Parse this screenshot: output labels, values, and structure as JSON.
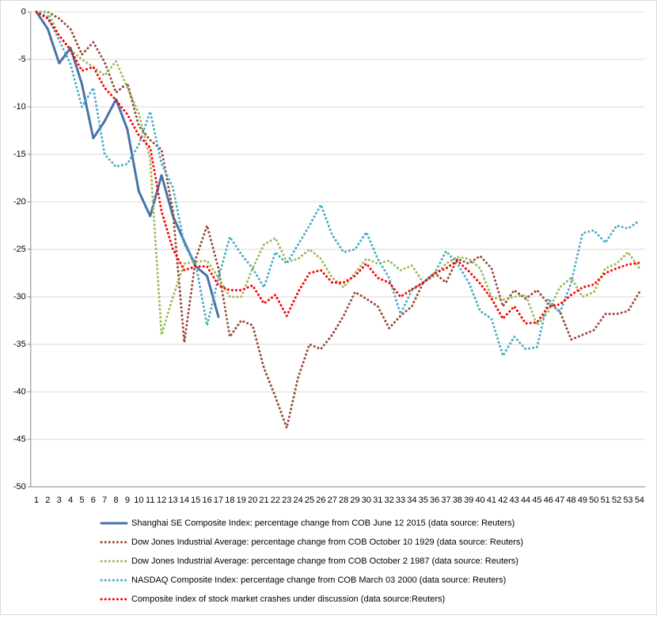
{
  "chart_data": {
    "type": "line",
    "categories": [
      1,
      2,
      3,
      4,
      5,
      6,
      7,
      8,
      9,
      10,
      11,
      12,
      13,
      14,
      15,
      16,
      17,
      18,
      19,
      20,
      21,
      22,
      23,
      24,
      25,
      26,
      27,
      28,
      29,
      30,
      31,
      32,
      33,
      34,
      35,
      36,
      37,
      38,
      39,
      40,
      41,
      42,
      43,
      44,
      45,
      46,
      47,
      48,
      49,
      50,
      51,
      52,
      53,
      54
    ],
    "ylim": [
      -50,
      0
    ],
    "yticks": [
      0,
      -5,
      -10,
      -15,
      -20,
      -25,
      -30,
      -35,
      -40,
      -45,
      -50
    ],
    "grid": true,
    "legend": "bottom",
    "series": [
      {
        "name": "Shanghai SE Composite Index: percentage change from COB June 12 2015 (data source: Reuters)",
        "color": "#4a72a8",
        "line_style": "solid",
        "values": [
          0,
          -1.8,
          -5.4,
          -3.8,
          -7.6,
          -13.3,
          -11.5,
          -9.2,
          -12.4,
          -18.9,
          -21.5,
          -17.2,
          -21.5,
          -24.2,
          -26.8,
          -27.8,
          -32.1,
          null,
          null,
          null,
          null,
          null,
          null,
          null,
          null,
          null,
          null,
          null,
          null,
          null,
          null,
          null,
          null,
          null,
          null,
          null,
          null,
          null,
          null,
          null,
          null,
          null,
          null,
          null,
          null,
          null,
          null,
          null,
          null,
          null,
          null,
          null,
          null,
          null
        ]
      },
      {
        "name": "Dow Jones Industrial Average: percentage change from COB October 10 1929 (data source: Reuters)",
        "color": "#9b4a3a",
        "line_style": "dotted",
        "values": [
          0,
          0,
          -0.7,
          -1.8,
          -4.5,
          -3.2,
          -5.3,
          -8.5,
          -7.5,
          -12,
          -13.5,
          -14.5,
          -21,
          -34.8,
          -26,
          -22.5,
          -27,
          -34.2,
          -32.5,
          -33,
          -37.5,
          -40.5,
          -43.8,
          -38.5,
          -35,
          -35.5,
          -34,
          -32,
          -29.5,
          -30.2,
          -31,
          -33.3,
          -32,
          -31,
          -28.5,
          -27.5,
          -28.5,
          -26,
          -26.5,
          -25.7,
          -27,
          -31,
          -29.3,
          -30.2,
          -29.3,
          -30.7,
          -31.5,
          -34.5,
          -34,
          -33.5,
          -31.8,
          -31.8,
          -31.5,
          -29.5
        ]
      },
      {
        "name": "Dow Jones Industrial Average: percentage change from COB October 2 1987 (data source: Reuters)",
        "color": "#9bbb59",
        "line_style": "dotted",
        "values": [
          0,
          0,
          -2.5,
          -4,
          -5,
          -5.8,
          -6.7,
          -5.2,
          -8,
          -10.7,
          -15.5,
          -34,
          -30,
          -26.5,
          -26.3,
          -26.2,
          -28,
          -30,
          -30,
          -27,
          -24.5,
          -23.8,
          -26.3,
          -26,
          -25,
          -26,
          -28,
          -29,
          -27.5,
          -26,
          -26.5,
          -26.2,
          -27.2,
          -26.7,
          -28.5,
          -27.8,
          -26.5,
          -25.8,
          -26,
          -27,
          -30,
          -30.3,
          -30,
          -29.8,
          -33,
          -31.5,
          -29,
          -28,
          -30,
          -29.5,
          -27,
          -26.5,
          -25.3,
          -27
        ]
      },
      {
        "name": "NASDAQ Composite Index: percentage change from COB March 03 2000 (data source: Reuters)",
        "color": "#4bacc6",
        "line_style": "dotted",
        "values": [
          0,
          -0.5,
          -3,
          -5.5,
          -10,
          -8,
          -15,
          -16.3,
          -16,
          -14,
          -10.5,
          -16,
          -18.5,
          -24.5,
          -26.5,
          -33,
          -28,
          -23.7,
          -25.5,
          -27,
          -29,
          -25.3,
          -26.5,
          -24.5,
          -22.5,
          -20.3,
          -23.5,
          -25.3,
          -25,
          -23.2,
          -26,
          -28,
          -31.8,
          -29.3,
          -28.5,
          -27.5,
          -25.2,
          -26.5,
          -28.5,
          -31.5,
          -32.3,
          -36.2,
          -34.2,
          -35.5,
          -35.3,
          -30.2,
          -31.7,
          -28.5,
          -23.3,
          -23,
          -24.3,
          -22.5,
          -22.8,
          -22
        ]
      },
      {
        "name": "Composite index of stock market crashes under discussion (data source:Reuters)",
        "color": "#ff0000",
        "line_style": "dotted",
        "values": [
          0,
          -0.7,
          -2.5,
          -4,
          -6.2,
          -5.8,
          -8,
          -9.3,
          -10.8,
          -13,
          -14.3,
          -21,
          -25,
          -27.2,
          -26.8,
          -26.8,
          -28.8,
          -29.3,
          -29.3,
          -28.8,
          -30.7,
          -29.8,
          -32,
          -29.5,
          -27.5,
          -27.2,
          -28.5,
          -28.5,
          -27.8,
          -26.5,
          -28,
          -28.5,
          -30,
          -29.2,
          -28.5,
          -27.5,
          -27,
          -26.2,
          -27.3,
          -28.6,
          -30.2,
          -32.3,
          -31,
          -32.8,
          -32.7,
          -31,
          -30.8,
          -29.8,
          -29,
          -28.7,
          -27.5,
          -27,
          -26.6,
          -26.4
        ]
      }
    ]
  }
}
